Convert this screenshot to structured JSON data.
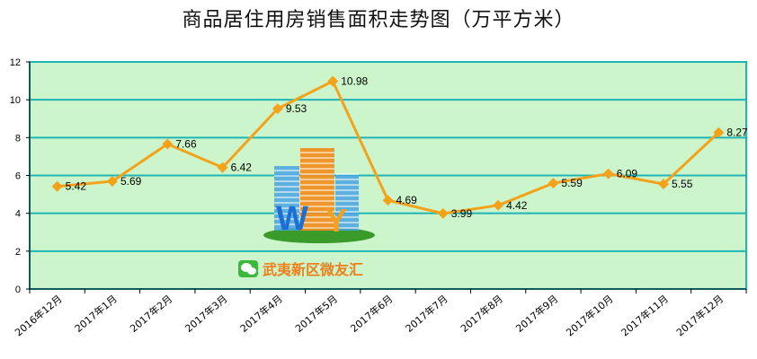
{
  "chart_data": {
    "type": "line",
    "title": "商品居住用房销售面积走势图（万平方米）",
    "categories": [
      "2016年12月",
      "2017年1月",
      "2017年2月",
      "2017年3月",
      "2017年4月",
      "2017年5月",
      "2017年6月",
      "2017年7月",
      "2017年8月",
      "2017年9月",
      "2017年10月",
      "2017年11月",
      "2017年12月"
    ],
    "series": [
      {
        "values": [
          5.42,
          5.69,
          7.66,
          6.42,
          9.53,
          10.98,
          4.69,
          3.99,
          4.42,
          5.59,
          6.09,
          5.55,
          8.27
        ]
      }
    ],
    "data_labels": [
      "5.42",
      "5.69",
      "7.66",
      "6.42",
      "9.53",
      "10.98",
      "4.69",
      "3.99",
      "4.42",
      "5.59",
      "6.09",
      "5.55",
      "8.27"
    ],
    "ylim": [
      0,
      12
    ],
    "yticks": [
      "0",
      "2",
      "4",
      "6",
      "8",
      "10",
      "12"
    ],
    "grid": true,
    "colors": {
      "line": "#f5a21b",
      "plot_bg": "#ccf5cc",
      "grid": "#1fb5b5",
      "border": "#1fb5b5"
    }
  },
  "watermark": {
    "logo_letters": "WY",
    "text": "武夷新区微友汇",
    "icon": "wechat-icon"
  }
}
